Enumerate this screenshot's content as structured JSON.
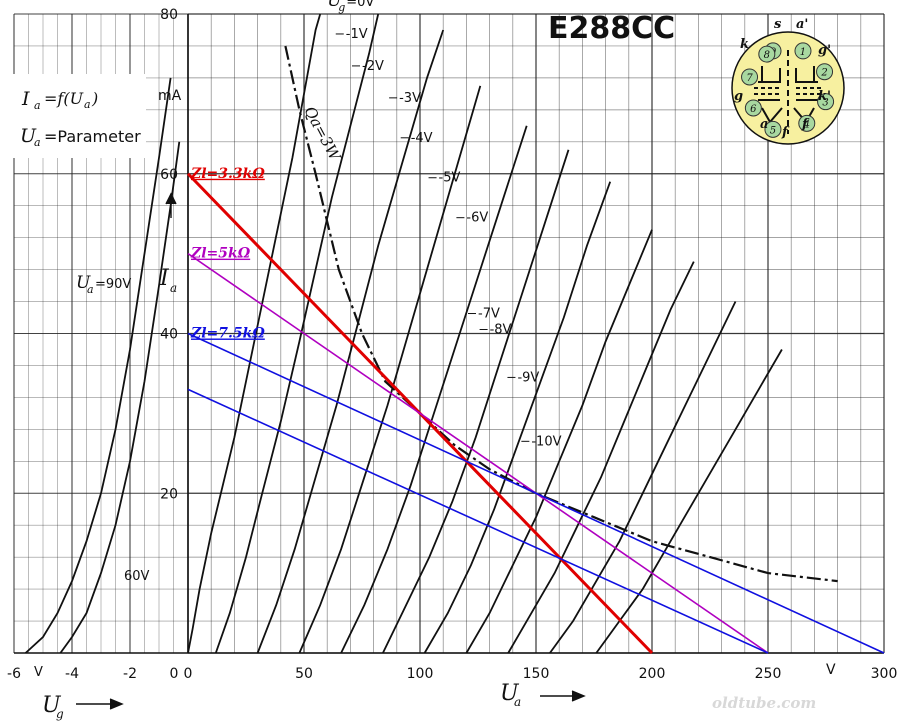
{
  "chart_data": {
    "type": "line",
    "title": "E288CC",
    "watermark": "oldtube.com",
    "main_plot": {
      "xlabel": "U",
      "xlabel_sub": "a",
      "x_unit": "V",
      "ylabel": "I",
      "ylabel_sub": "a",
      "y_unit": "mA",
      "xlim": [
        0,
        300
      ],
      "ylim": [
        0,
        80
      ],
      "x_ticks": [
        "0",
        "50",
        "100",
        "150",
        "200",
        "250",
        "300"
      ],
      "y_ticks": [
        "20",
        "40",
        "60",
        "80"
      ],
      "grid": true,
      "curves": [
        {
          "label_prefix": "U",
          "label_sub": "g",
          "label": "=0V",
          "points": [
            [
              0,
              0
            ],
            [
              2,
              3
            ],
            [
              5,
              8
            ],
            [
              10,
              15
            ],
            [
              15,
              21
            ],
            [
              20,
              27
            ],
            [
              25,
              34
            ],
            [
              30,
              41
            ],
            [
              35,
              48
            ],
            [
              40,
              55
            ],
            [
              45,
              62
            ],
            [
              50,
              70
            ],
            [
              55,
              78
            ],
            [
              57,
              80
            ]
          ]
        },
        {
          "label": "-1V",
          "points": [
            [
              12,
              0
            ],
            [
              18,
              5
            ],
            [
              25,
              12
            ],
            [
              32,
              20
            ],
            [
              40,
              29
            ],
            [
              48,
              39
            ],
            [
              55,
              48
            ],
            [
              62,
              57
            ],
            [
              70,
              66
            ],
            [
              78,
              75
            ],
            [
              82,
              80
            ]
          ]
        },
        {
          "label": "-2V",
          "points": [
            [
              30,
              0
            ],
            [
              38,
              6
            ],
            [
              46,
              13
            ],
            [
              55,
              22
            ],
            [
              64,
              31
            ],
            [
              73,
              41
            ],
            [
              82,
              51
            ],
            [
              92,
              61
            ],
            [
              103,
              72
            ],
            [
              110,
              78
            ]
          ]
        },
        {
          "label": "-3V",
          "points": [
            [
              48,
              0
            ],
            [
              57,
              6
            ],
            [
              66,
              13
            ],
            [
              76,
              22
            ],
            [
              86,
              31
            ],
            [
              96,
              41
            ],
            [
              106,
              51
            ],
            [
              116,
              61
            ],
            [
              126,
              71
            ]
          ]
        },
        {
          "label": "-4V",
          "points": [
            [
              66,
              0
            ],
            [
              76,
              6
            ],
            [
              86,
              13
            ],
            [
              96,
              21
            ],
            [
              106,
              30
            ],
            [
              116,
              39
            ],
            [
              126,
              48
            ],
            [
              136,
              57
            ],
            [
              146,
              66
            ]
          ]
        },
        {
          "label": "-5V",
          "points": [
            [
              84,
              0
            ],
            [
              94,
              6
            ],
            [
              104,
              12
            ],
            [
              114,
              19
            ],
            [
              124,
              27
            ],
            [
              134,
              36
            ],
            [
              144,
              45
            ],
            [
              154,
              54
            ],
            [
              164,
              63
            ]
          ]
        },
        {
          "label": "-6V",
          "points": [
            [
              102,
              0
            ],
            [
              112,
              5
            ],
            [
              122,
              11
            ],
            [
              132,
              18
            ],
            [
              142,
              26
            ],
            [
              152,
              34
            ],
            [
              162,
              42
            ],
            [
              172,
              51
            ],
            [
              182,
              59
            ]
          ]
        },
        {
          "label": "-7V",
          "points": [
            [
              120,
              0
            ],
            [
              130,
              5
            ],
            [
              140,
              11
            ],
            [
              150,
              17
            ],
            [
              160,
              24
            ],
            [
              170,
              31
            ],
            [
              180,
              39
            ],
            [
              190,
              46
            ],
            [
              200,
              53
            ]
          ]
        },
        {
          "label": "-8V",
          "points": [
            [
              138,
              0
            ],
            [
              148,
              5
            ],
            [
              158,
              10
            ],
            [
              168,
              16
            ],
            [
              178,
              22
            ],
            [
              188,
              29
            ],
            [
              198,
              36
            ],
            [
              208,
              43
            ],
            [
              218,
              49
            ]
          ]
        },
        {
          "label": "-9V",
          "points": [
            [
              156,
              0
            ],
            [
              166,
              4
            ],
            [
              176,
              9
            ],
            [
              186,
              14
            ],
            [
              196,
              20
            ],
            [
              206,
              26
            ],
            [
              216,
              32
            ],
            [
              226,
              38
            ],
            [
              236,
              44
            ]
          ]
        },
        {
          "label": "-10V",
          "points": [
            [
              176,
              0
            ],
            [
              186,
              4
            ],
            [
              196,
              8
            ],
            [
              206,
              13
            ],
            [
              216,
              18
            ],
            [
              226,
              23
            ],
            [
              236,
              28
            ],
            [
              246,
              33
            ],
            [
              256,
              38
            ]
          ]
        }
      ],
      "curve_label_positions_Ua_Ia": [
        [
          60,
          81
        ],
        [
          68,
          77
        ],
        [
          75,
          73
        ],
        [
          91,
          69
        ],
        [
          96,
          64
        ],
        [
          108,
          59
        ],
        [
          120,
          54
        ],
        [
          125,
          42
        ],
        [
          130,
          40
        ],
        [
          142,
          34
        ],
        [
          148,
          26
        ]
      ],
      "power_limit": {
        "label": "Qa=3W",
        "points": [
          [
            42,
            76
          ],
          [
            48,
            68
          ],
          [
            55,
            60
          ],
          [
            65,
            48
          ],
          [
            75,
            40
          ],
          [
            85,
            34
          ],
          [
            100,
            30
          ],
          [
            115,
            26
          ],
          [
            130,
            23
          ],
          [
            150,
            20
          ],
          [
            175,
            17
          ],
          [
            200,
            14
          ],
          [
            225,
            12
          ],
          [
            250,
            10
          ],
          [
            280,
            9
          ]
        ]
      },
      "load_lines": [
        {
          "name": "Zl=3.3kΩ",
          "color": "#e00000",
          "from": [
            0,
            60
          ],
          "to": [
            200,
            0
          ]
        },
        {
          "name": "Zl=5kΩ",
          "color": "#b000c0",
          "from": [
            0,
            50
          ],
          "to": [
            250,
            0
          ]
        },
        {
          "name": "Zl=7.5kΩ",
          "color": "#1010e0",
          "from": [
            0,
            40
          ],
          "to": [
            300,
            0
          ]
        },
        {
          "name": "",
          "color": "#1010e0",
          "from": [
            0,
            33
          ],
          "to": [
            250,
            0
          ]
        }
      ]
    },
    "left_plot": {
      "xlabel": "U",
      "xlabel_sub": "g",
      "x_unit": "V",
      "xlim": [
        -6,
        0
      ],
      "x_ticks": [
        "-6",
        "-4",
        "-2",
        "0"
      ],
      "ylim": [
        0,
        80
      ],
      "legend_line1": "I",
      "legend_line1_sub": "a",
      "legend_line1_rest": "=f(U",
      "legend_line1_sub2": "a",
      "legend_line1_end": ")",
      "legend_line2": "U",
      "legend_line2_sub": "a",
      "legend_line2_rest": "=Parameter",
      "curves": [
        {
          "label_prefix": "U",
          "label_sub": "a",
          "label": "=90V",
          "points": [
            [
              -5.6,
              0
            ],
            [
              -5,
              2
            ],
            [
              -4.5,
              5
            ],
            [
              -4,
              9
            ],
            [
              -3.5,
              14
            ],
            [
              -3,
              20
            ],
            [
              -2.5,
              28
            ],
            [
              -2,
              38
            ],
            [
              -1.5,
              50
            ],
            [
              -1,
              62
            ],
            [
              -0.6,
              72
            ]
          ]
        },
        {
          "label": "60V",
          "points": [
            [
              -4.4,
              0
            ],
            [
              -4,
              2
            ],
            [
              -3.5,
              5
            ],
            [
              -3,
              10
            ],
            [
              -2.5,
              16
            ],
            [
              -2,
              24
            ],
            [
              -1.5,
              34
            ],
            [
              -1,
              46
            ],
            [
              -0.6,
              56
            ],
            [
              -0.3,
              64
            ]
          ]
        }
      ]
    },
    "pinout": {
      "pins": [
        {
          "num": "9",
          "name": "s"
        },
        {
          "num": "1",
          "name": "a'"
        },
        {
          "num": "2",
          "name": "g'"
        },
        {
          "num": "3",
          "name": "k'"
        },
        {
          "num": "4",
          "name": "f"
        },
        {
          "num": "5",
          "name": "f"
        },
        {
          "num": "6",
          "name": "a"
        },
        {
          "num": "7",
          "name": "g"
        },
        {
          "num": "8",
          "name": "k"
        }
      ],
      "pin_color": "#a8d8a0",
      "base_color": "#f7f0a0"
    }
  }
}
